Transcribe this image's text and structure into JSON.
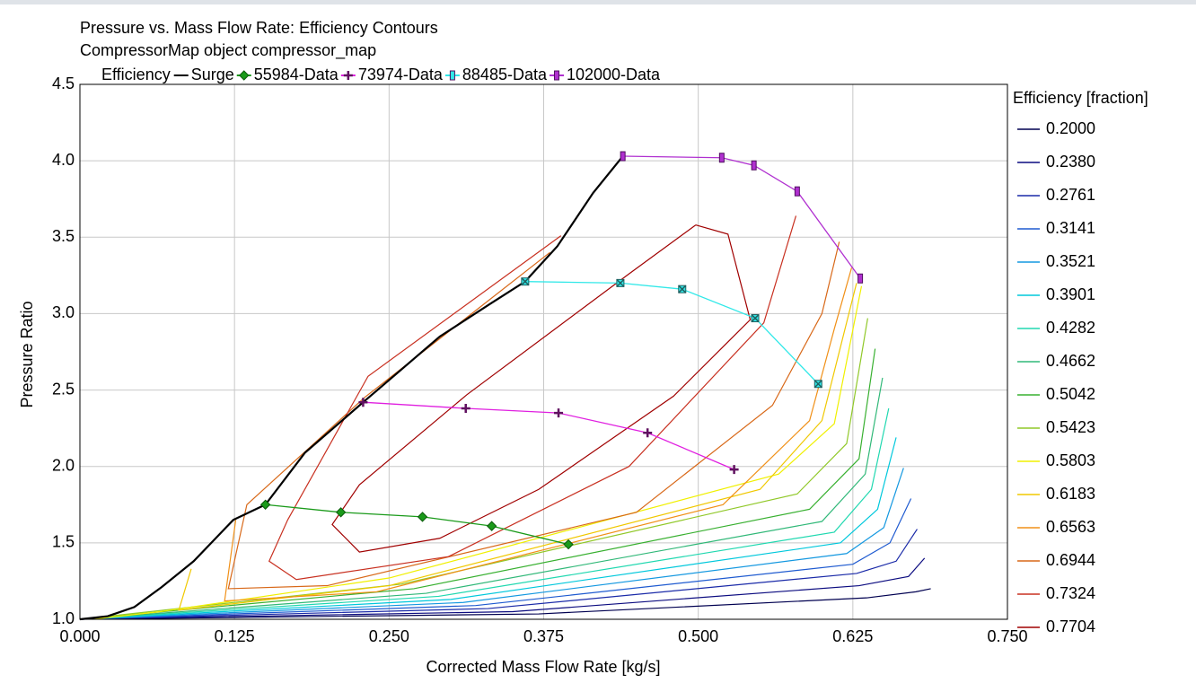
{
  "chart_data": {
    "type": "contour",
    "title": "Pressure vs. Mass Flow Rate: Efficiency Contours",
    "subtitle": "CompressorMap object compressor_map",
    "x_label": "Corrected Mass Flow Rate [kg/s]",
    "y_label": "Pressure Ratio",
    "contour_legend_entry": "Efficiency",
    "contour_legend_title": "Efficiency [fraction]",
    "xlim": [
      0,
      0.75
    ],
    "ylim": [
      1.0,
      4.5
    ],
    "xticks": [
      {
        "value": 0,
        "label": "0.000"
      },
      0.125,
      {
        "value": 0.25,
        "label": "0.250"
      },
      0.375,
      {
        "value": 0.5,
        "label": "0.500"
      },
      0.625,
      {
        "value": 0.75,
        "label": "0.750"
      }
    ],
    "yticks": [
      {
        "value": 1.0,
        "label": "1.0"
      },
      1.5,
      {
        "value": 2.0,
        "label": "2.0"
      },
      2.5,
      {
        "value": 3.0,
        "label": "3.0"
      },
      3.5,
      {
        "value": 4.0,
        "label": "4.0"
      },
      4.5
    ],
    "grid": true,
    "series": [
      {
        "name": "Surge",
        "color": "#000000",
        "marker": "none",
        "x": [
          0,
          0.0225,
          0.044,
          0.066,
          0.092,
          0.124,
          0.15,
          0.182,
          0.229,
          0.255,
          0.291,
          0.331,
          0.36,
          0.386,
          0.415,
          0.439
        ],
        "values": [
          1.0,
          1.02,
          1.08,
          1.21,
          1.38,
          1.65,
          1.75,
          2.09,
          2.42,
          2.6,
          2.85,
          3.06,
          3.21,
          3.44,
          3.79,
          4.03
        ]
      },
      {
        "name": "55984-Data",
        "color": "#1a9a1a",
        "marker": "diamond",
        "x": [
          0.15,
          0.211,
          0.277,
          0.333,
          0.395
        ],
        "values": [
          1.75,
          1.7,
          1.67,
          1.61,
          1.49
        ]
      },
      {
        "name": "73974-Data",
        "color": "#e020e0",
        "marker": "plus",
        "x": [
          0.229,
          0.312,
          0.387,
          0.459,
          0.529
        ],
        "values": [
          2.42,
          2.38,
          2.35,
          2.22,
          1.98
        ]
      },
      {
        "name": "88485-Data",
        "color": "#30e8e8",
        "marker": "xbox",
        "x": [
          0.36,
          0.437,
          0.487,
          0.546,
          0.597
        ],
        "values": [
          3.21,
          3.2,
          3.16,
          2.97,
          2.54
        ]
      },
      {
        "name": "102000-Data",
        "color": "#b030d0",
        "marker": "bar",
        "x": [
          0.439,
          0.519,
          0.545,
          0.58,
          0.631
        ],
        "values": [
          4.03,
          4.02,
          3.97,
          3.8,
          3.23
        ]
      }
    ],
    "contours": [
      {
        "level": {
          "value": 0.2,
          "label": "0.2000"
        },
        "color": "#000050",
        "x": [
          0,
          0.371,
          0.636,
          0.676,
          0.688
        ],
        "y": [
          1.0,
          1.035,
          1.14,
          1.18,
          1.2
        ]
      },
      {
        "level": {
          "value": 0.238,
          "label": "0.2380"
        },
        "color": "#0c0c80",
        "x": [
          0,
          0.35,
          0.63,
          0.67,
          0.683
        ],
        "y": [
          1.0,
          1.05,
          1.22,
          1.28,
          1.4
        ]
      },
      {
        "level": {
          "value": 0.2761,
          "label": "0.2761"
        },
        "color": "#1a2aa8",
        "x": [
          0,
          0.33,
          0.628,
          0.66,
          0.677
        ],
        "y": [
          1.0,
          1.07,
          1.3,
          1.38,
          1.59
        ]
      },
      {
        "level": {
          "value": 0.3141,
          "label": "0.3141"
        },
        "color": "#1e5ad0",
        "x": [
          0,
          0.32,
          0.625,
          0.655,
          0.672
        ],
        "y": [
          1.0,
          1.09,
          1.36,
          1.5,
          1.79
        ]
      },
      {
        "level": {
          "value": 0.3521,
          "label": "0.3521"
        },
        "color": "#1498e0",
        "x": [
          0,
          0.31,
          0.62,
          0.65,
          0.666
        ],
        "y": [
          1.0,
          1.11,
          1.43,
          1.6,
          1.99
        ]
      },
      {
        "level": {
          "value": 0.3901,
          "label": "0.3901"
        },
        "color": "#00c8dc",
        "x": [
          0,
          0.3,
          0.615,
          0.645,
          0.66
        ],
        "y": [
          1.0,
          1.13,
          1.5,
          1.72,
          2.19
        ]
      },
      {
        "level": {
          "value": 0.4282,
          "label": "0.4282"
        },
        "color": "#20d8b0",
        "x": [
          0,
          0.29,
          0.61,
          0.64,
          0.654
        ],
        "y": [
          1.0,
          1.15,
          1.57,
          1.85,
          2.38
        ]
      },
      {
        "level": {
          "value": 0.4662,
          "label": "0.4662"
        },
        "color": "#30b878",
        "x": [
          0,
          0.28,
          0.6,
          0.635,
          0.649
        ],
        "y": [
          1.0,
          1.17,
          1.64,
          1.95,
          2.58
        ]
      },
      {
        "level": {
          "value": 0.5042,
          "label": "0.5042"
        },
        "color": "#38b030",
        "x": [
          0,
          0.27,
          0.59,
          0.63,
          0.643
        ],
        "y": [
          1.0,
          1.2,
          1.72,
          2.05,
          2.77
        ]
      },
      {
        "level": {
          "value": 0.5423,
          "label": "0.5423"
        },
        "color": "#90c828",
        "x": [
          0,
          0.26,
          0.58,
          0.62,
          0.637
        ],
        "y": [
          1.0,
          1.23,
          1.82,
          2.15,
          2.97
        ]
      },
      {
        "level": {
          "value": 0.5803,
          "label": "0.5803"
        },
        "color": "#f0f000",
        "x": [
          0.01,
          0.065,
          0.25,
          0.565,
          0.61,
          0.632
        ],
        "y": [
          1.0,
          1.05,
          1.27,
          1.95,
          2.28,
          3.18
        ]
      },
      {
        "level": {
          "value": 0.6183,
          "label": "0.6183"
        },
        "color": "#f0c800",
        "x": [
          0.09,
          0.08,
          0.25,
          0.55,
          0.6,
          0.628
        ],
        "y": [
          1.33,
          1.06,
          1.22,
          1.85,
          2.3,
          3.2
        ]
      },
      {
        "level": {
          "value": 0.6563,
          "label": "0.6563"
        },
        "color": "#f09018",
        "x": [
          0.126,
          0.117,
          0.24,
          0.52,
          0.59,
          0.61,
          0.624
        ],
        "y": [
          1.65,
          1.12,
          1.18,
          1.75,
          2.3,
          2.9,
          3.3
        ]
      },
      {
        "level": {
          "value": 0.6944,
          "label": "0.6944"
        },
        "color": "#d86818",
        "x": [
          0.38,
          0.23,
          0.135,
          0.12,
          0.2,
          0.45,
          0.56,
          0.6,
          0.614
        ],
        "y": [
          3.4,
          2.45,
          1.75,
          1.2,
          1.22,
          1.7,
          2.4,
          3.0,
          3.47
        ]
      },
      {
        "level": {
          "value": 0.7324,
          "label": "0.7324"
        },
        "color": "#c83020",
        "x": [
          0.389,
          0.233,
          0.168,
          0.153,
          0.175,
          0.298,
          0.444,
          0.553,
          0.579
        ],
        "y": [
          3.51,
          2.59,
          1.65,
          1.38,
          1.26,
          1.41,
          2.0,
          2.94,
          3.64
        ]
      },
      {
        "level": {
          "value": 0.7704,
          "label": "0.7704"
        },
        "color": "#a00000",
        "x": [
          0.498,
          0.524,
          0.542,
          0.48,
          0.371,
          0.291,
          0.226,
          0.204,
          0.226,
          0.313,
          0.444,
          0.498
        ],
        "y": [
          3.58,
          3.52,
          2.96,
          2.46,
          1.85,
          1.53,
          1.44,
          1.62,
          1.88,
          2.47,
          3.26,
          3.58
        ]
      }
    ]
  }
}
